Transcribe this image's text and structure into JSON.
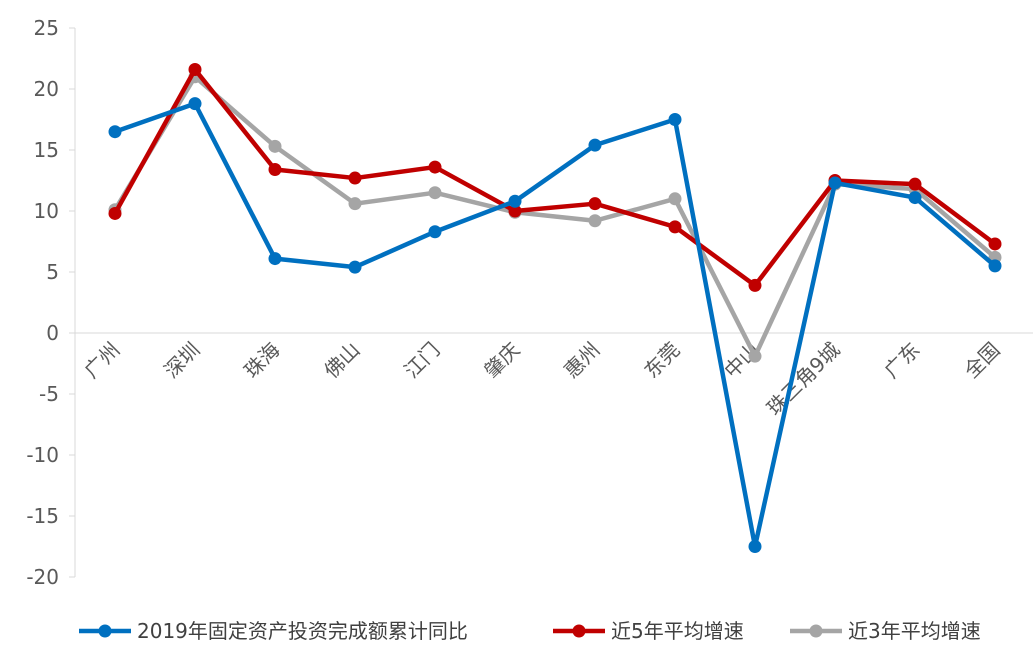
{
  "chart_data": {
    "type": "line",
    "categories": [
      "广州",
      "深圳",
      "珠海",
      "佛山",
      "江门",
      "肇庆",
      "惠州",
      "东莞",
      "中山",
      "珠三角9城",
      "广东",
      "全国"
    ],
    "series": [
      {
        "name": "2019年固定资产投资完成额累计同比",
        "color": "#0070C0",
        "values": [
          16.5,
          18.8,
          6.1,
          5.4,
          8.3,
          10.8,
          15.4,
          17.5,
          -17.5,
          12.3,
          11.1,
          5.5
        ]
      },
      {
        "name": "近5年平均增速",
        "color": "#C00000",
        "values": [
          9.8,
          21.6,
          13.4,
          12.7,
          13.6,
          10.0,
          10.6,
          8.7,
          3.9,
          12.5,
          12.2,
          7.3
        ]
      },
      {
        "name": "近3年平均增速",
        "color": "#A5A5A5",
        "values": [
          10.1,
          21.0,
          15.3,
          10.6,
          11.5,
          9.9,
          9.2,
          11.0,
          -1.9,
          12.2,
          11.8,
          6.2
        ]
      }
    ],
    "y_ticks": [
      "25",
      "20",
      "15",
      "10",
      "5",
      "0",
      "-5",
      "-10",
      "-15",
      "-20"
    ],
    "ylim": [
      -20,
      25
    ],
    "grid": false,
    "legend_position": "bottom"
  }
}
